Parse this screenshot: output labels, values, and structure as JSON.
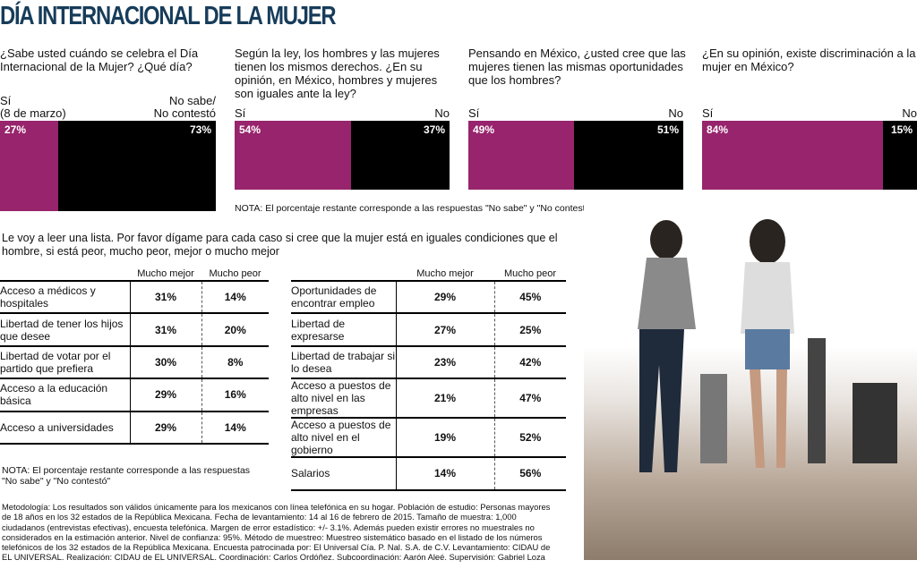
{
  "title": "DÍA INTERNACIONAL DE LA MUJER",
  "chart_data": [
    {
      "type": "bar",
      "title": "¿Sabe usted cuándo se celebra el Día Internacional de la Mujer? ¿Qué día?",
      "categories": [
        "Sí (8 de marzo)",
        "No sabe/ No contestó"
      ],
      "labels": {
        "si": "Sí",
        "si2": "(8 de marzo)",
        "no": "No sabe/",
        "no2": "No contestó"
      },
      "values": [
        27,
        73
      ],
      "value_labels": [
        "27%",
        "73%"
      ],
      "colors": [
        "#97246c",
        "#000000"
      ]
    },
    {
      "type": "bar",
      "title": "Según la ley, los hombres y las mujeres tienen los mismos derechos. ¿En su opinión, en México, hombres y mujeres son iguales ante la ley?",
      "categories": [
        "Sí",
        "No"
      ],
      "labels": {
        "si": "Sí",
        "no": "No"
      },
      "values": [
        54,
        37
      ],
      "value_labels": [
        "54%",
        "37%"
      ],
      "colors": [
        "#97246c",
        "#000000"
      ]
    },
    {
      "type": "bar",
      "title": "Pensando en México, ¿usted cree que las mujeres tienen las mismas oportunidades que los hombres?",
      "categories": [
        "Sí",
        "No"
      ],
      "labels": {
        "si": "Sí",
        "no": "No"
      },
      "values": [
        49,
        51
      ],
      "value_labels": [
        "49%",
        "51%"
      ],
      "colors": [
        "#97246c",
        "#000000"
      ]
    },
    {
      "type": "bar",
      "title": "¿En su opinión, existe discriminación a la mujer en México?",
      "categories": [
        "Sí",
        "No"
      ],
      "labels": {
        "si": "Sí",
        "no": "No"
      },
      "values": [
        84,
        15
      ],
      "value_labels": [
        "84%",
        "15%"
      ],
      "colors": [
        "#97246c",
        "#000000"
      ]
    },
    {
      "type": "table",
      "columns": [
        "",
        "Mucho mejor",
        "Mucho peor"
      ],
      "rows": [
        {
          "label": "Acceso a médicos y hospitales",
          "mejor": "31%",
          "peor": "14%"
        },
        {
          "label": "Libertad de tener los hijos que desee",
          "mejor": "31%",
          "peor": "20%"
        },
        {
          "label": "Libertad de votar por el partido que prefiera",
          "mejor": "30%",
          "peor": "8%"
        },
        {
          "label": "Acceso a la educación básica",
          "mejor": "29%",
          "peor": "16%"
        },
        {
          "label": "Acceso a universidades",
          "mejor": "29%",
          "peor": "14%"
        }
      ]
    },
    {
      "type": "table",
      "columns": [
        "",
        "Mucho mejor",
        "Mucho peor"
      ],
      "rows": [
        {
          "label": "Oportunidades de encontrar empleo",
          "mejor": "29%",
          "peor": "45%"
        },
        {
          "label": "Libertad de expresarse",
          "mejor": "27%",
          "peor": "25%"
        },
        {
          "label": "Libertad de trabajar si lo desea",
          "mejor": "23%",
          "peor": "42%"
        },
        {
          "label": "Acceso a puestos de alto nivel en las empresas",
          "mejor": "21%",
          "peor": "47%"
        },
        {
          "label": "Acceso a puestos de alto nivel en el gobierno",
          "mejor": "19%",
          "peor": "52%"
        },
        {
          "label": "Salarios",
          "mejor": "14%",
          "peor": "56%"
        }
      ]
    }
  ],
  "nota_top": "NOTA: El porcentaje restante corresponde a las respuestas \"No sabe\" y \"No contestó\"",
  "intro": "Le voy a leer una lista. Por favor dígame para cada caso si cree que la mujer está en iguales condiciones que el hombre, si está peor, mucho peor, mejor o mucho mejor",
  "nota_bottom": "NOTA: El porcentaje restante corresponde a las respuestas \"No sabe\" y \"No contestó\"",
  "metodologia": "Metodología: Los resultados son válidos únicamente para los mexicanos con línea telefónica en su hogar. Población de estudio:  Personas mayores de 18 años en los 32 estados de la República Mexicana. Fecha de levantamiento: 14 al 16 de febrero de 2015. Tamaño de muestra: 1,000 ciudadanos (entrevistas efectivas), encuesta telefónica. Margen de error estadístico: +/- 3.1%. Además pueden existir errores no muestrales no considerados en la estimación anterior. Nivel de confianza: 95%. Método de muestreo: Muestreo sistemático basado en el listado de los números telefónicos de los 32 estados de la República Mexicana. Encuesta patrocinada por: El Universal Cía. P. Nal. S.A. de C.V. Levantamiento: CIDAU de EL UNIVERSAL. Realización: CIDAU de EL UNIVERSAL. Coordinación: Carlos Ordóñez. Subcoordinación: Aarón Aleé. Supervisión: Gabriel Loza"
}
